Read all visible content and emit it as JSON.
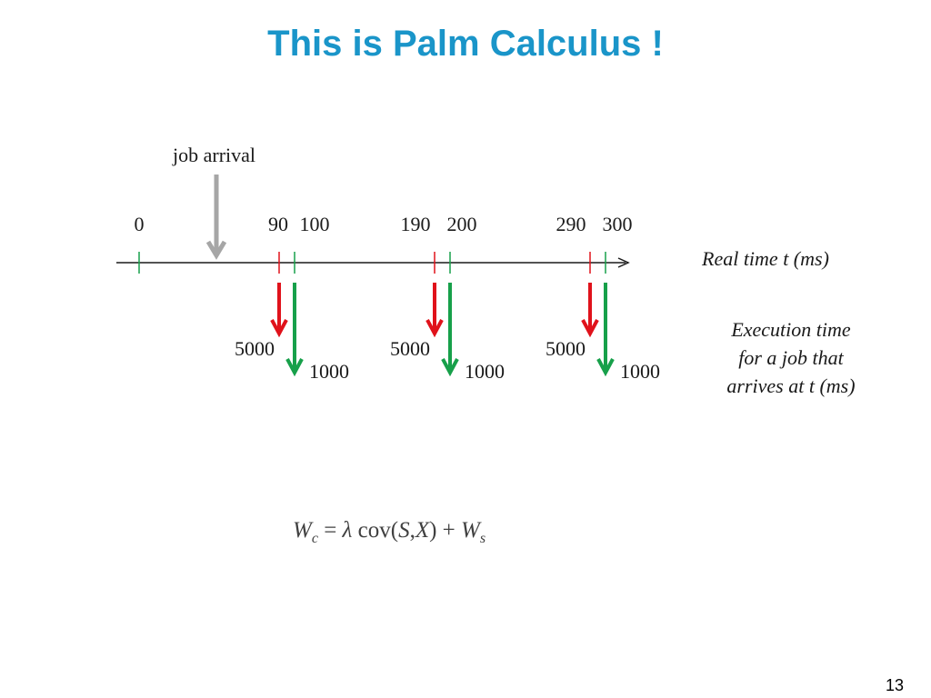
{
  "slide": {
    "title": "This is Palm Calculus !",
    "page_number": "13"
  },
  "diagram": {
    "arrival_label": "job arrival",
    "axis_label": "Real time t (ms)",
    "side_label_lines": [
      "Execution time",
      "for a job that",
      "arrives at t (ms)"
    ],
    "ticks": [
      {
        "label": "0",
        "color": "green"
      },
      {
        "label": "90",
        "color": "red"
      },
      {
        "label": "100",
        "color": "green"
      },
      {
        "label": "190",
        "color": "red"
      },
      {
        "label": "200",
        "color": "green"
      },
      {
        "label": "290",
        "color": "red"
      },
      {
        "label": "300",
        "color": "green"
      }
    ],
    "execution_times": [
      {
        "red": "5000",
        "green": "1000"
      },
      {
        "red": "5000",
        "green": "1000"
      },
      {
        "red": "5000",
        "green": "1000"
      }
    ],
    "colors": {
      "red": "#e0121b",
      "green": "#17a04a",
      "gray": "#a6a6a6",
      "title": "#1a95c9"
    }
  },
  "formula": {
    "lhs_var": "W",
    "lhs_sub": "c",
    "equals": "=",
    "lambda": "λ",
    "cov": "cov",
    "open": "(",
    "arg1": "S",
    "comma": ",",
    "arg2": "X",
    "close": ")",
    "plus": "+",
    "rhs_var": "W",
    "rhs_sub": "s"
  }
}
